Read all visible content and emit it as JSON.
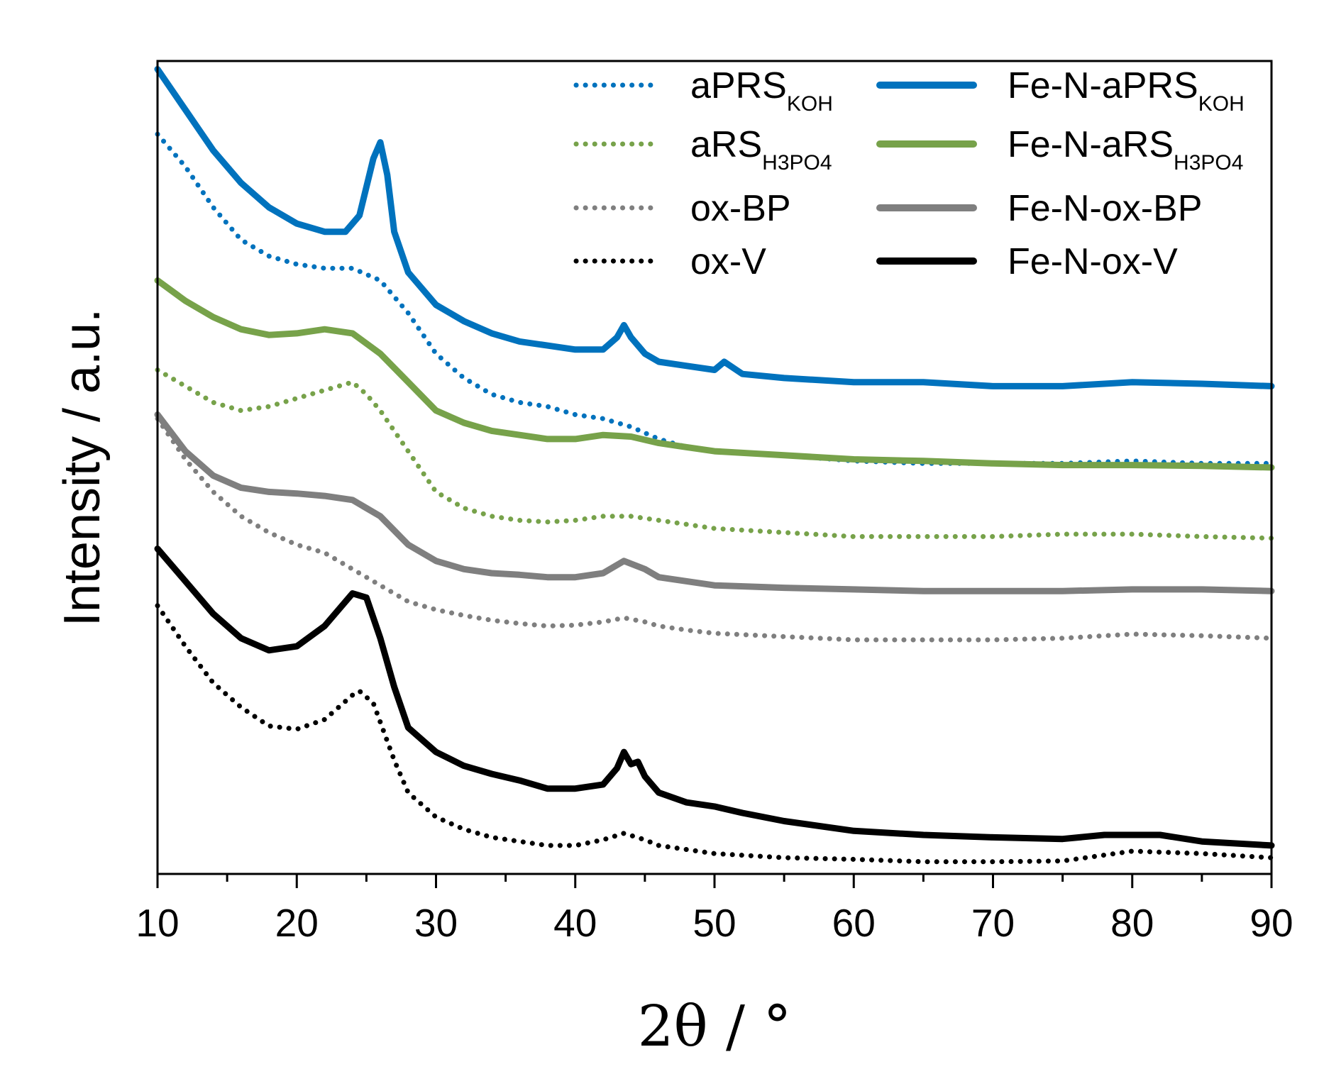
{
  "chart_data": {
    "type": "line",
    "title": "",
    "xlabel": "2θ / °",
    "ylabel": "Intensity / a.u.",
    "xlim": [
      10,
      90
    ],
    "ylim": [
      0,
      100
    ],
    "x_ticks": [
      10,
      20,
      30,
      40,
      50,
      60,
      70,
      80,
      90
    ],
    "y_ticks_shown": false,
    "legend_position": "top-right",
    "series": [
      {
        "name": "aPRS",
        "subscript": "KOH",
        "style": "dotted",
        "color": "#0072bd",
        "points": [
          [
            10,
            91
          ],
          [
            12,
            87
          ],
          [
            14,
            82
          ],
          [
            16,
            78
          ],
          [
            18,
            76
          ],
          [
            20,
            75
          ],
          [
            22,
            74.5
          ],
          [
            24,
            74.5
          ],
          [
            26,
            73
          ],
          [
            28,
            69
          ],
          [
            30,
            64
          ],
          [
            32,
            61
          ],
          [
            34,
            59
          ],
          [
            36,
            58
          ],
          [
            38,
            57.5
          ],
          [
            40,
            56.5
          ],
          [
            42,
            56
          ],
          [
            44,
            55
          ],
          [
            46,
            53.5
          ],
          [
            48,
            52.5
          ],
          [
            50,
            52
          ],
          [
            55,
            51.5
          ],
          [
            60,
            50.8
          ],
          [
            65,
            50.5
          ],
          [
            70,
            50.5
          ],
          [
            75,
            50.5
          ],
          [
            80,
            50.8
          ],
          [
            85,
            50.5
          ],
          [
            90,
            50.5
          ]
        ]
      },
      {
        "name": "Fe-N-aPRS",
        "subscript": "KOH",
        "style": "solid",
        "color": "#0072bd",
        "points": [
          [
            10,
            99
          ],
          [
            12,
            94
          ],
          [
            14,
            89
          ],
          [
            16,
            85
          ],
          [
            18,
            82
          ],
          [
            20,
            80
          ],
          [
            22,
            79
          ],
          [
            23.5,
            79
          ],
          [
            24.5,
            81
          ],
          [
            25.5,
            88
          ],
          [
            26,
            90
          ],
          [
            26.5,
            86
          ],
          [
            27,
            79
          ],
          [
            28,
            74
          ],
          [
            30,
            70
          ],
          [
            32,
            68
          ],
          [
            34,
            66.5
          ],
          [
            36,
            65.5
          ],
          [
            38,
            65
          ],
          [
            40,
            64.5
          ],
          [
            42,
            64.5
          ],
          [
            43,
            66
          ],
          [
            43.5,
            67.5
          ],
          [
            44,
            66
          ],
          [
            45,
            64
          ],
          [
            46,
            63
          ],
          [
            48,
            62.5
          ],
          [
            50,
            62
          ],
          [
            50.7,
            63
          ],
          [
            52,
            61.5
          ],
          [
            55,
            61
          ],
          [
            60,
            60.5
          ],
          [
            65,
            60.5
          ],
          [
            70,
            60
          ],
          [
            75,
            60
          ],
          [
            80,
            60.5
          ],
          [
            85,
            60.3
          ],
          [
            90,
            60
          ]
        ]
      },
      {
        "name": "aRS",
        "subscript": "H3PO4",
        "style": "dotted",
        "color": "#77a24a",
        "points": [
          [
            10,
            62
          ],
          [
            12,
            60
          ],
          [
            14,
            58
          ],
          [
            16,
            57
          ],
          [
            18,
            57.5
          ],
          [
            20,
            58.5
          ],
          [
            22,
            59.5
          ],
          [
            24,
            60.5
          ],
          [
            25,
            59
          ],
          [
            26,
            57
          ],
          [
            28,
            52
          ],
          [
            30,
            47
          ],
          [
            32,
            45
          ],
          [
            34,
            44
          ],
          [
            36,
            43.5
          ],
          [
            38,
            43.3
          ],
          [
            40,
            43.5
          ],
          [
            42,
            44
          ],
          [
            44,
            44
          ],
          [
            46,
            43.5
          ],
          [
            48,
            43
          ],
          [
            50,
            42.5
          ],
          [
            55,
            42
          ],
          [
            60,
            41.5
          ],
          [
            65,
            41.5
          ],
          [
            70,
            41.5
          ],
          [
            75,
            41.8
          ],
          [
            80,
            41.8
          ],
          [
            85,
            41.5
          ],
          [
            90,
            41.3
          ]
        ]
      },
      {
        "name": "Fe-N-aRS",
        "subscript": "H3PO4",
        "style": "solid",
        "color": "#77a24a",
        "points": [
          [
            10,
            73
          ],
          [
            12,
            70.5
          ],
          [
            14,
            68.5
          ],
          [
            16,
            67
          ],
          [
            18,
            66.3
          ],
          [
            20,
            66.5
          ],
          [
            22,
            67
          ],
          [
            24,
            66.5
          ],
          [
            26,
            64
          ],
          [
            28,
            60.5
          ],
          [
            30,
            57
          ],
          [
            32,
            55.5
          ],
          [
            34,
            54.5
          ],
          [
            36,
            54
          ],
          [
            38,
            53.5
          ],
          [
            40,
            53.5
          ],
          [
            42,
            54
          ],
          [
            44,
            53.8
          ],
          [
            46,
            53
          ],
          [
            48,
            52.5
          ],
          [
            50,
            52
          ],
          [
            55,
            51.5
          ],
          [
            60,
            51
          ],
          [
            65,
            50.8
          ],
          [
            70,
            50.5
          ],
          [
            75,
            50.3
          ],
          [
            80,
            50.3
          ],
          [
            85,
            50.2
          ],
          [
            90,
            50
          ]
        ]
      },
      {
        "name": "ox-BP",
        "subscript": "",
        "style": "dotted",
        "color": "#7f7f7f",
        "points": [
          [
            10,
            56
          ],
          [
            12,
            51
          ],
          [
            14,
            47
          ],
          [
            16,
            44
          ],
          [
            18,
            42
          ],
          [
            20,
            40.5
          ],
          [
            22,
            39.5
          ],
          [
            24,
            37.5
          ],
          [
            26,
            35.5
          ],
          [
            28,
            33.5
          ],
          [
            30,
            32.5
          ],
          [
            32,
            31.8
          ],
          [
            34,
            31.2
          ],
          [
            36,
            30.8
          ],
          [
            38,
            30.5
          ],
          [
            40,
            30.6
          ],
          [
            42,
            31
          ],
          [
            43.5,
            31.5
          ],
          [
            45,
            31
          ],
          [
            46,
            30.5
          ],
          [
            48,
            30
          ],
          [
            50,
            29.6
          ],
          [
            55,
            29.2
          ],
          [
            60,
            28.8
          ],
          [
            65,
            28.8
          ],
          [
            70,
            28.8
          ],
          [
            75,
            29
          ],
          [
            80,
            29.5
          ],
          [
            85,
            29.3
          ],
          [
            90,
            29
          ]
        ]
      },
      {
        "name": "Fe-N-ox-BP",
        "subscript": "",
        "style": "solid",
        "color": "#7f7f7f",
        "points": [
          [
            10,
            56.5
          ],
          [
            12,
            52
          ],
          [
            14,
            49
          ],
          [
            16,
            47.5
          ],
          [
            18,
            47
          ],
          [
            20,
            46.8
          ],
          [
            22,
            46.5
          ],
          [
            24,
            46
          ],
          [
            26,
            44
          ],
          [
            28,
            40.5
          ],
          [
            30,
            38.5
          ],
          [
            32,
            37.5
          ],
          [
            34,
            37
          ],
          [
            36,
            36.8
          ],
          [
            38,
            36.5
          ],
          [
            40,
            36.5
          ],
          [
            42,
            37
          ],
          [
            43.5,
            38.5
          ],
          [
            45,
            37.5
          ],
          [
            46,
            36.5
          ],
          [
            48,
            36
          ],
          [
            50,
            35.5
          ],
          [
            55,
            35.2
          ],
          [
            60,
            35
          ],
          [
            65,
            34.8
          ],
          [
            70,
            34.8
          ],
          [
            75,
            34.8
          ],
          [
            80,
            35
          ],
          [
            85,
            35
          ],
          [
            90,
            34.8
          ]
        ]
      },
      {
        "name": "ox-V",
        "subscript": "",
        "style": "dotted",
        "color": "#000000",
        "points": [
          [
            10,
            33
          ],
          [
            12,
            28
          ],
          [
            14,
            23.5
          ],
          [
            16,
            20.5
          ],
          [
            18,
            18.2
          ],
          [
            20,
            17.8
          ],
          [
            22,
            19
          ],
          [
            24,
            22
          ],
          [
            24.5,
            22.5
          ],
          [
            25.5,
            21
          ],
          [
            27,
            14
          ],
          [
            28,
            10
          ],
          [
            30,
            7
          ],
          [
            32,
            5.5
          ],
          [
            34,
            4.5
          ],
          [
            36,
            4
          ],
          [
            38,
            3.5
          ],
          [
            40,
            3.5
          ],
          [
            42,
            4.2
          ],
          [
            43.5,
            5
          ],
          [
            45,
            4.2
          ],
          [
            46,
            3.5
          ],
          [
            48,
            3
          ],
          [
            50,
            2.5
          ],
          [
            55,
            2
          ],
          [
            60,
            1.8
          ],
          [
            65,
            1.5
          ],
          [
            70,
            1.5
          ],
          [
            75,
            1.6
          ],
          [
            80,
            2.8
          ],
          [
            85,
            2.5
          ],
          [
            90,
            2
          ]
        ]
      },
      {
        "name": "Fe-N-ox-V",
        "subscript": "",
        "style": "solid",
        "color": "#000000",
        "points": [
          [
            10,
            40
          ],
          [
            12,
            36
          ],
          [
            14,
            32
          ],
          [
            16,
            29
          ],
          [
            18,
            27.5
          ],
          [
            20,
            28
          ],
          [
            22,
            30.5
          ],
          [
            24,
            34.5
          ],
          [
            25,
            34
          ],
          [
            26,
            29
          ],
          [
            27,
            23
          ],
          [
            28,
            18
          ],
          [
            30,
            15
          ],
          [
            32,
            13.3
          ],
          [
            34,
            12.3
          ],
          [
            36,
            11.5
          ],
          [
            38,
            10.5
          ],
          [
            40,
            10.5
          ],
          [
            42,
            11
          ],
          [
            43,
            13
          ],
          [
            43.5,
            15
          ],
          [
            44,
            13.5
          ],
          [
            44.5,
            13.8
          ],
          [
            45,
            12
          ],
          [
            46,
            10
          ],
          [
            48,
            8.8
          ],
          [
            50,
            8.3
          ],
          [
            52,
            7.5
          ],
          [
            55,
            6.5
          ],
          [
            60,
            5.3
          ],
          [
            65,
            4.8
          ],
          [
            70,
            4.5
          ],
          [
            75,
            4.3
          ],
          [
            78,
            4.8
          ],
          [
            80,
            4.8
          ],
          [
            82,
            4.8
          ],
          [
            85,
            4
          ],
          [
            90,
            3.5
          ]
        ]
      }
    ]
  }
}
